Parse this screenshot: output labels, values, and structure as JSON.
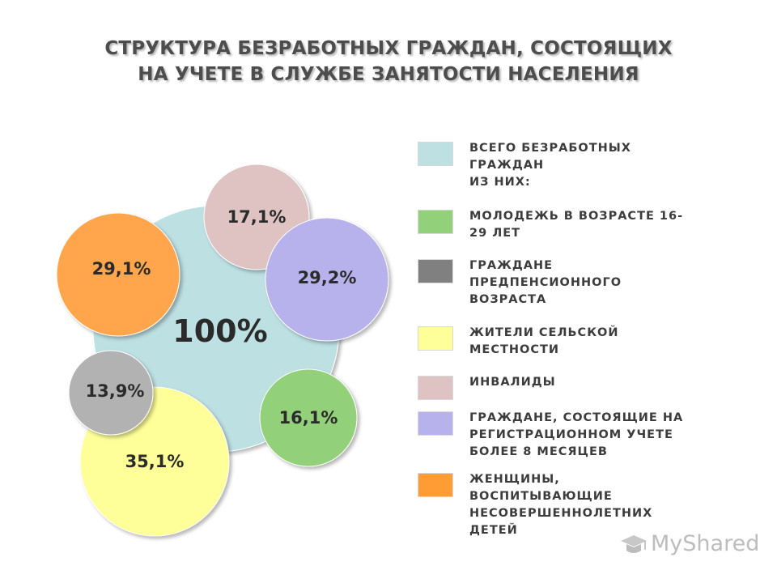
{
  "title": {
    "line1": "СТРУКТУРА БЕЗРАБОТНЫХ ГРАЖДАН, СОСТОЯЩИХ",
    "line2": "НА УЧЕТЕ В СЛУЖБЕ ЗАНЯТОСТИ НАСЕЛЕНИЯ"
  },
  "chart_data": {
    "type": "bubble",
    "title": "СТРУКТУРА БЕЗРАБОТНЫХ ГРАЖДАН, СОСТОЯЩИХ НА УЧЕТЕ В СЛУЖБЕ ЗАНЯТОСТИ НАСЕЛЕНИЯ",
    "series": [
      {
        "name": "ВСЕГО БЕЗРАБОТНЫХ ГРАЖДАН ИЗ НИХ:",
        "value": 100,
        "label": "100%",
        "color": "#bde0e3"
      },
      {
        "name": "МОЛОДЕЖЬ В ВОЗРАСТЕ 16-29 ЛЕТ",
        "value": 16.1,
        "label": "16,1%",
        "color": "#92d17a"
      },
      {
        "name": "ГРАЖДАНЕ ПРЕДПЕНСИОННОГО ВОЗРАСТА",
        "value": 13.9,
        "label": "13,9%",
        "color": "#b2b2b2"
      },
      {
        "name": "ЖИТЕЛИ СЕЛЬСКОЙ МЕСТНОСТИ",
        "value": 35.1,
        "label": "35,1%",
        "color": "#ffff99"
      },
      {
        "name": "ИНВАЛИДЫ",
        "value": 17.1,
        "label": "17,1%",
        "color": "#dfc3c3"
      },
      {
        "name": "ГРАЖДАНЕ, СОСТОЯЩИЕ НА РЕГИСТРАЦИОННОМ УЧЕТЕ БОЛЕЕ 8 МЕСЯЦЕВ",
        "value": 29.2,
        "label": "29,2%",
        "color": "#b7b2ec"
      },
      {
        "name": "ЖЕНЩИНЫ, ВОСПИТЫВАЮЩИЕ НЕСОВЕРШЕННОЛЕТНИХ ДЕТЕЙ",
        "value": 29.1,
        "label": "29,1%",
        "color": "#ffa64d"
      }
    ]
  },
  "legend": [
    {
      "text": "ВСЕГО БЕЗРАБОТНЫХ\nГРАЖДАН\nИЗ НИХ:",
      "color": "#bde0e3"
    },
    {
      "text": "МОЛОДЕЖЬ В ВОЗРАСТЕ 16-\n29 ЛЕТ",
      "color": "#92d17a"
    },
    {
      "text": "ГРАЖДАНЕ\nПРЕДПЕНСИОННОГО\nВОЗРАСТА",
      "color": "#808080"
    },
    {
      "text": "ЖИТЕЛИ СЕЛЬСКОЙ\nМЕСТНОСТИ",
      "color": "#ffff99"
    },
    {
      "text": "ИНВАЛИДЫ",
      "color": "#dfc3c3"
    },
    {
      "text": "ГРАЖДАНЕ, СОСТОЯЩИЕ НА\nРЕГИСТРАЦИОННОМ УЧЕТЕ\nБОЛЕЕ 8 МЕСЯЦЕВ",
      "color": "#b7b2ec"
    },
    {
      "text": "ЖЕНЩИНЫ,\nВОСПИТЫВАЮЩИЕ\nНЕСОВЕРШЕННОЛЕТНИХ\nДЕТЕЙ",
      "color": "#ff9c33"
    }
  ],
  "watermark": {
    "text": "MyShared",
    "icon": "mortarboard-icon"
  }
}
